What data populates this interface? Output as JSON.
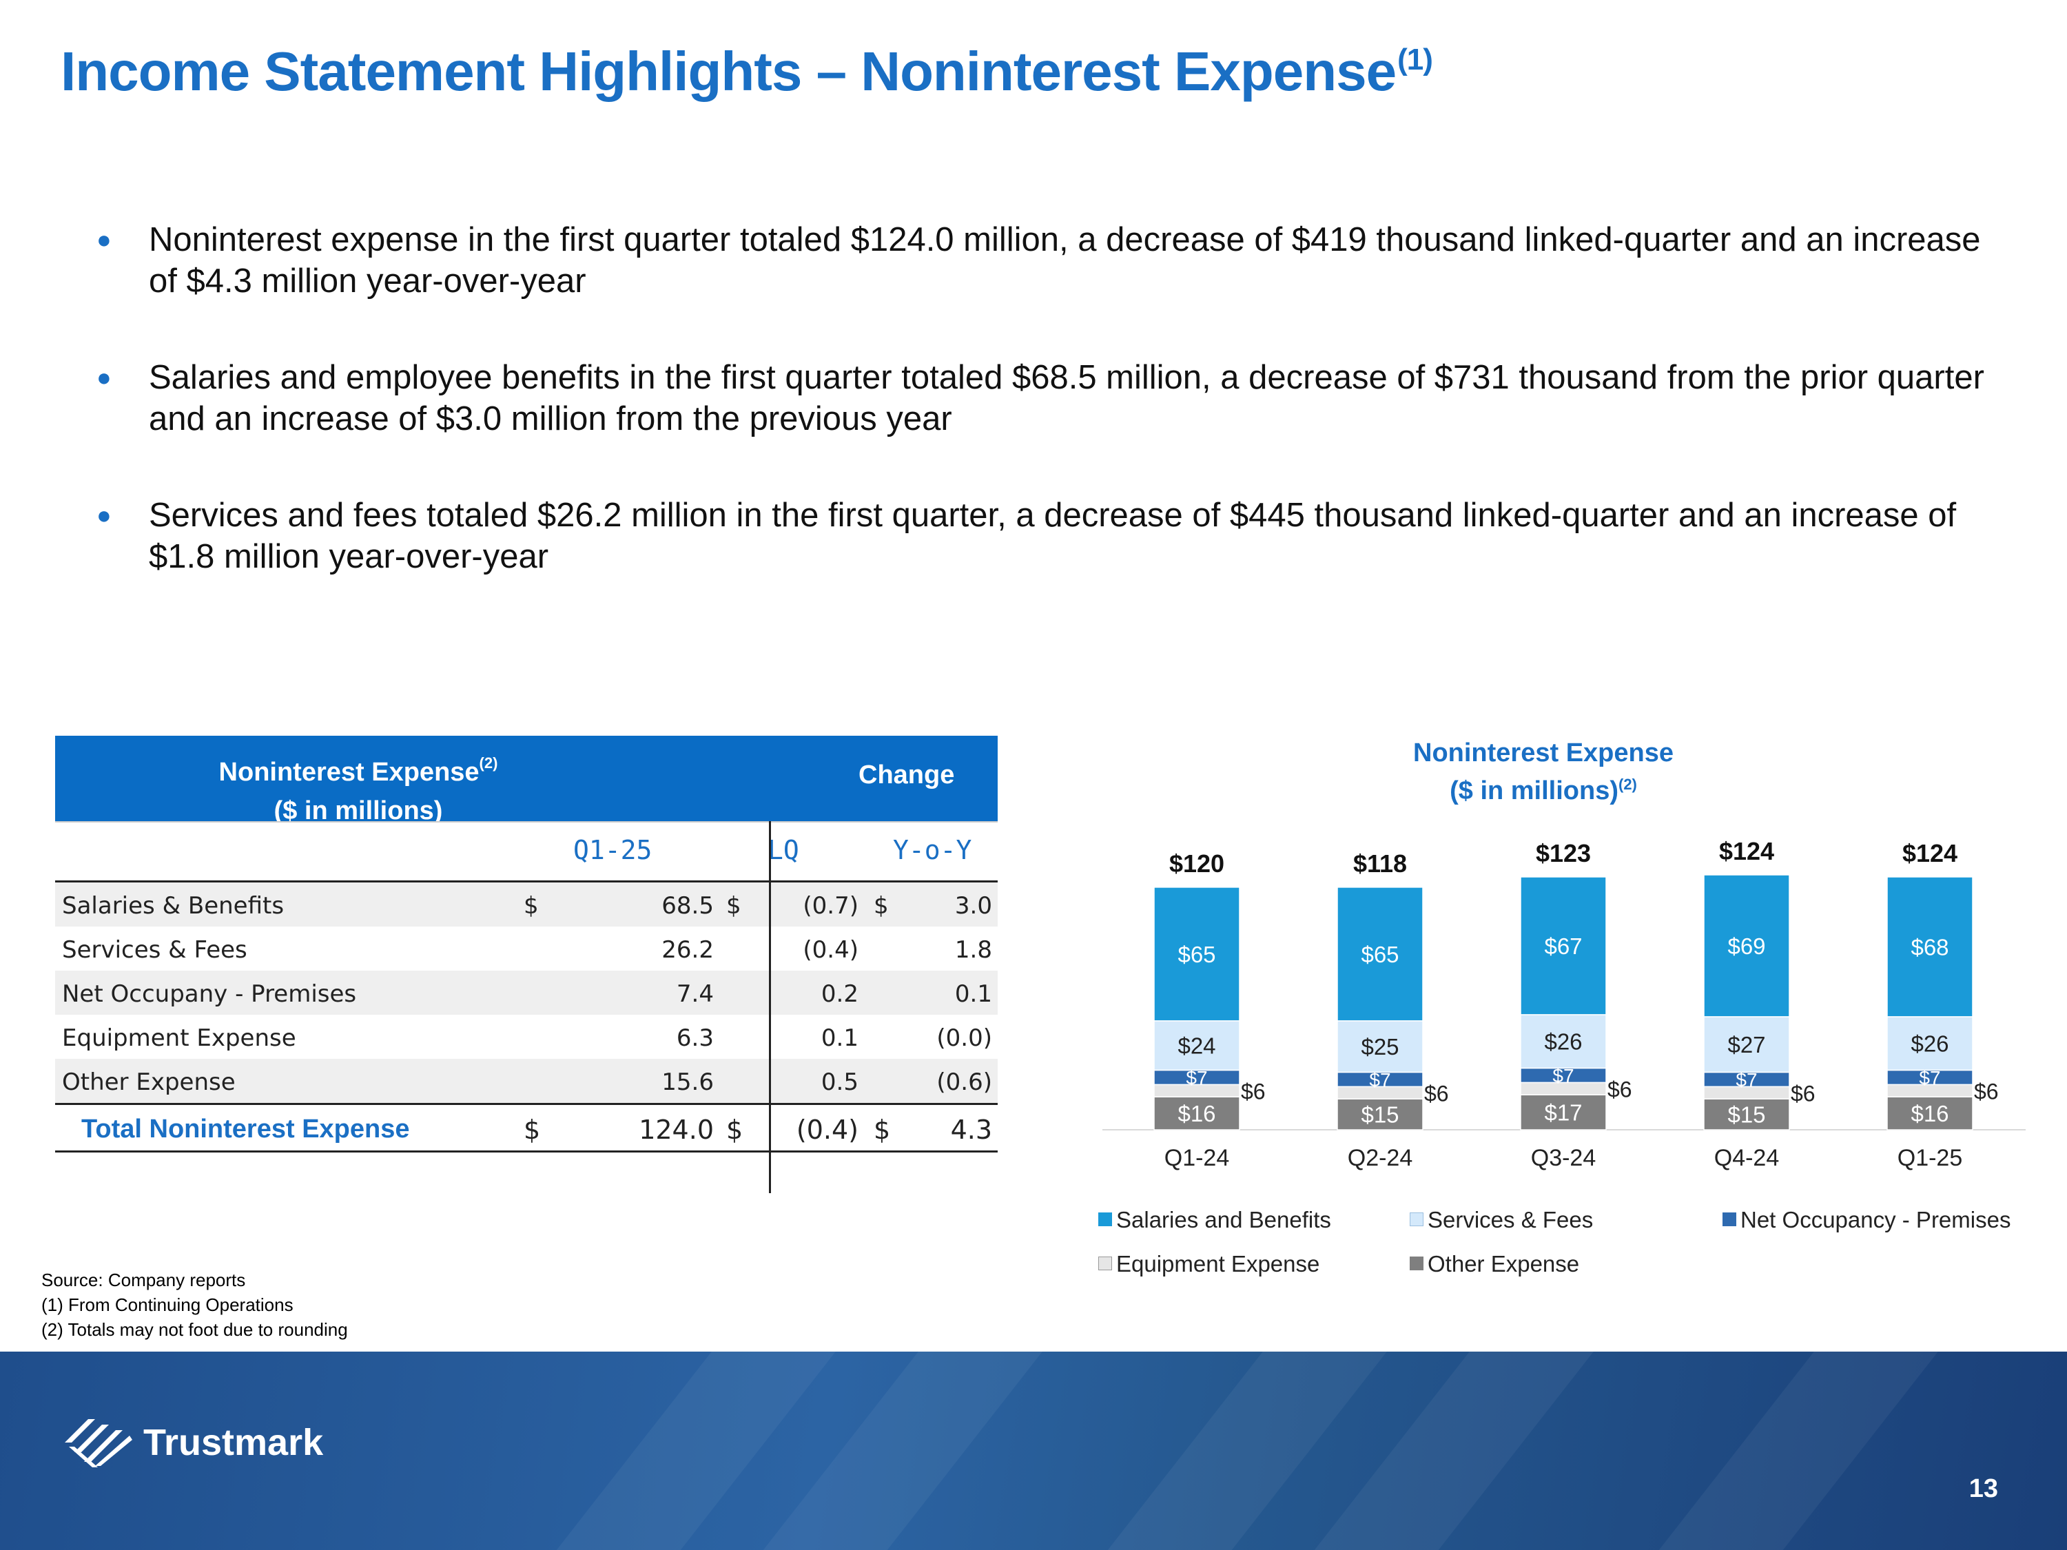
{
  "title": "Income Statement Highlights – Noninterest Expense",
  "title_note": "(1)",
  "bullets": [
    "Noninterest expense in the first quarter totaled $124.0 million, a decrease of $419 thousand linked-quarter and an increase of $4.3 million year-over-year",
    "Salaries and employee benefits in the first quarter totaled $68.5 million, a decrease of $731 thousand from the prior quarter and an increase of $3.0 million from the previous year",
    "Services and fees totaled $26.2 million in the first quarter, a decrease of $445 thousand linked-quarter and an increase of $1.8 million year-over-year"
  ],
  "table": {
    "header_title": "Noninterest Expense",
    "header_note": "(2)",
    "header_units": "($ in millions)",
    "header_change": "Change",
    "col_q": "Q1-25",
    "col_lq": "LQ",
    "col_yoy": "Y-o-Y",
    "rows": [
      {
        "label": "Salaries & Benefits",
        "d1": "$",
        "q": "68.5",
        "d2": "$",
        "lq": "(0.7)",
        "d3": "$",
        "yoy": "3.0"
      },
      {
        "label": "Services & Fees",
        "d1": "",
        "q": "26.2",
        "d2": "",
        "lq": "(0.4)",
        "d3": "",
        "yoy": "1.8"
      },
      {
        "label": "Net Occupany - Premises",
        "d1": "",
        "q": "7.4",
        "d2": "",
        "lq": "0.2",
        "d3": "",
        "yoy": "0.1"
      },
      {
        "label": "Equipment Expense",
        "d1": "",
        "q": "6.3",
        "d2": "",
        "lq": "0.1",
        "d3": "",
        "yoy": "(0.0)"
      },
      {
        "label": "Other Expense",
        "d1": "",
        "q": "15.6",
        "d2": "",
        "lq": "0.5",
        "d3": "",
        "yoy": "(0.6)"
      }
    ],
    "total": {
      "label": "Total Noninterest Expense",
      "d1": "$",
      "q": "124.0",
      "d2": "$",
      "lq": "(0.4)",
      "d3": "$",
      "yoy": "4.3"
    }
  },
  "chart_title_1": "Noninterest Expense",
  "chart_title_2": "($ in millions)",
  "chart_title_note": "(2)",
  "chart_data": {
    "type": "bar",
    "stacked": true,
    "title": "Noninterest Expense ($ in millions)",
    "categories": [
      "Q1-24",
      "Q2-24",
      "Q3-24",
      "Q4-24",
      "Q1-25"
    ],
    "series": [
      {
        "name": "Other Expense",
        "values": [
          16,
          15,
          17,
          15,
          16
        ],
        "labels": [
          "$16",
          "$15",
          "$17",
          "$15",
          "$16"
        ],
        "color": "#7f7f7f"
      },
      {
        "name": "Equipment Expense",
        "values": [
          6,
          6,
          6,
          6,
          6
        ],
        "labels": [
          "$6",
          "$6",
          "$6",
          "$6",
          "$6"
        ],
        "color": "#e6e6e6"
      },
      {
        "name": "Net Occupancy - Premises",
        "values": [
          7,
          7,
          7,
          7,
          7
        ],
        "labels": [
          "$7",
          "$7",
          "$7",
          "$7",
          "$7"
        ],
        "color": "#2e6ab0"
      },
      {
        "name": "Services & Fees",
        "values": [
          24,
          25,
          26,
          27,
          26
        ],
        "labels": [
          "$24",
          "$25",
          "$26",
          "$27",
          "$26"
        ],
        "color": "#d4e9fb"
      },
      {
        "name": "Salaries and Benefits",
        "values": [
          65,
          65,
          67,
          69,
          68
        ],
        "labels": [
          "$65",
          "$65",
          "$67",
          "$69",
          "$68"
        ],
        "color": "#1a9ad8"
      }
    ],
    "totals": [
      120,
      118,
      123,
      124,
      124
    ],
    "total_labels": [
      "$120",
      "$118",
      "$123",
      "$124",
      "$124"
    ],
    "ylim": [
      0,
      124
    ]
  },
  "legend": [
    {
      "name": "Salaries and Benefits",
      "color": "#1a9ad8"
    },
    {
      "name": "Services & Fees",
      "color": "#d4e9fb"
    },
    {
      "name": "Net Occupancy - Premises",
      "color": "#2e6ab0"
    },
    {
      "name": "Equipment Expense",
      "color": "#e6e6e6"
    },
    {
      "name": "Other Expense",
      "color": "#7f7f7f"
    }
  ],
  "footnotes": [
    "Source: Company reports",
    "(1) From Continuing Operations",
    "(2) Totals may not foot due to rounding"
  ],
  "logo_text": "Trustmark",
  "page_number": "13"
}
